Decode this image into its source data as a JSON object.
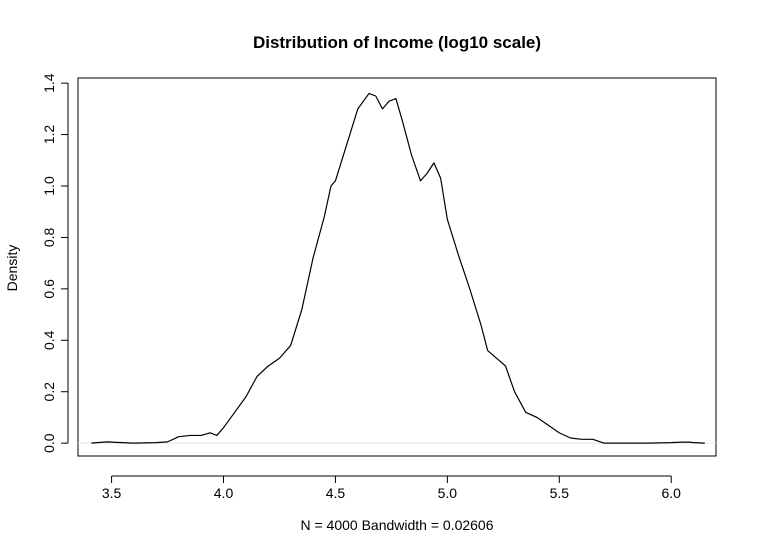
{
  "chart_data": {
    "type": "line",
    "title": "Distribution of Income (log10 scale)",
    "xlabel": "N = 4000   Bandwidth = 0.02606",
    "ylabel": "Density",
    "xlim": [
      3.35,
      6.2
    ],
    "ylim": [
      -0.05,
      1.42
    ],
    "xticks": [
      3.5,
      4.0,
      4.5,
      5.0,
      5.5,
      6.0
    ],
    "xtick_labels": [
      "3.5",
      "4.0",
      "4.5",
      "5.0",
      "5.5",
      "6.0"
    ],
    "yticks": [
      0.0,
      0.2,
      0.4,
      0.6,
      0.8,
      1.0,
      1.2,
      1.4
    ],
    "ytick_labels": [
      "0.0",
      "0.2",
      "0.4",
      "0.6",
      "0.8",
      "1.0",
      "1.2",
      "1.4"
    ],
    "grid": false,
    "baseline": {
      "y": 0,
      "color": "#e6e6e6"
    },
    "series": [
      {
        "color": "#000000",
        "x": [
          3.41,
          3.45,
          3.48,
          3.52,
          3.6,
          3.7,
          3.75,
          3.8,
          3.85,
          3.9,
          3.94,
          3.97,
          4.0,
          4.05,
          4.1,
          4.15,
          4.2,
          4.25,
          4.3,
          4.35,
          4.4,
          4.45,
          4.48,
          4.5,
          4.55,
          4.6,
          4.65,
          4.68,
          4.71,
          4.74,
          4.77,
          4.8,
          4.84,
          4.88,
          4.91,
          4.94,
          4.97,
          5.0,
          5.05,
          5.1,
          5.15,
          5.18,
          5.22,
          5.26,
          5.3,
          5.35,
          5.4,
          5.45,
          5.5,
          5.55,
          5.6,
          5.65,
          5.7,
          5.8,
          5.9,
          6.0,
          6.05,
          6.08,
          6.1,
          6.15
        ],
        "y": [
          0.0,
          0.003,
          0.005,
          0.003,
          0.0,
          0.002,
          0.005,
          0.025,
          0.03,
          0.03,
          0.04,
          0.03,
          0.06,
          0.12,
          0.18,
          0.26,
          0.3,
          0.33,
          0.38,
          0.52,
          0.72,
          0.88,
          1.0,
          1.02,
          1.16,
          1.3,
          1.36,
          1.35,
          1.3,
          1.33,
          1.34,
          1.25,
          1.12,
          1.02,
          1.05,
          1.09,
          1.03,
          0.87,
          0.73,
          0.6,
          0.46,
          0.36,
          0.33,
          0.3,
          0.2,
          0.12,
          0.1,
          0.07,
          0.04,
          0.02,
          0.015,
          0.015,
          0.0,
          0.0,
          0.0,
          0.002,
          0.004,
          0.004,
          0.002,
          0.0
        ]
      }
    ]
  }
}
